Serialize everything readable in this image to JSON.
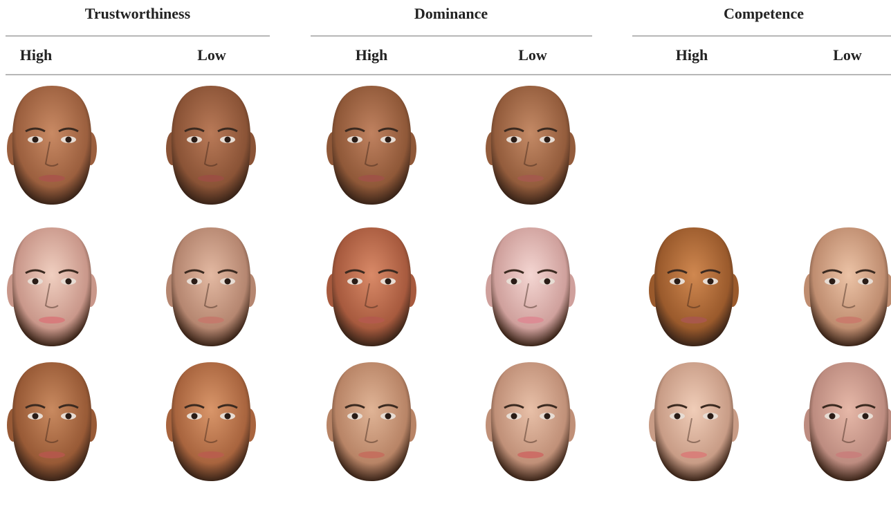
{
  "table": {
    "groups": [
      {
        "title": "Trustworthiness",
        "columns": [
          "High",
          "Low"
        ]
      },
      {
        "title": "Dominance",
        "columns": [
          "High",
          "Low"
        ]
      },
      {
        "title": "Competence",
        "columns": [
          "High",
          "Low"
        ]
      }
    ]
  }
}
